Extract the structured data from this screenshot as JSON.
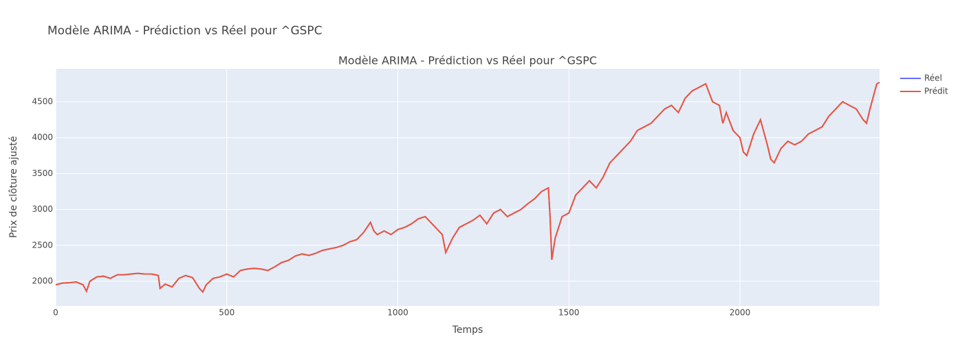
{
  "chart_data": {
    "type": "line",
    "title": "Modèle ARIMA - Prédiction vs Réel pour ^GSPC",
    "plot_title": "Modèle ARIMA - Prédiction vs Réel pour ^GSPC",
    "x_label": "Temps",
    "y_label": "Prix de clôture ajusté",
    "x": [
      0,
      20,
      40,
      60,
      80,
      90,
      100,
      120,
      140,
      160,
      180,
      200,
      220,
      240,
      260,
      280,
      300,
      305,
      320,
      340,
      360,
      380,
      400,
      420,
      430,
      440,
      460,
      480,
      500,
      520,
      540,
      560,
      580,
      600,
      620,
      640,
      660,
      680,
      700,
      720,
      740,
      760,
      780,
      800,
      820,
      840,
      860,
      880,
      900,
      920,
      930,
      940,
      960,
      980,
      1000,
      1020,
      1040,
      1060,
      1080,
      1100,
      1120,
      1130,
      1140,
      1160,
      1180,
      1200,
      1220,
      1240,
      1260,
      1280,
      1300,
      1320,
      1340,
      1360,
      1380,
      1400,
      1420,
      1440,
      1445,
      1450,
      1460,
      1480,
      1500,
      1520,
      1540,
      1560,
      1580,
      1600,
      1620,
      1640,
      1660,
      1680,
      1700,
      1720,
      1740,
      1760,
      1780,
      1800,
      1820,
      1840,
      1860,
      1880,
      1900,
      1920,
      1940,
      1950,
      1960,
      1980,
      2000,
      2010,
      2020,
      2040,
      2060,
      2080,
      2090,
      2100,
      2120,
      2140,
      2160,
      2180,
      2200,
      2220,
      2240,
      2260,
      2280,
      2300,
      2320,
      2340,
      2360,
      2370,
      2380,
      2400,
      2408
    ],
    "series": [
      {
        "name": "Réel",
        "color": "#636efa",
        "values": [
          1950,
          1975,
          1980,
          1990,
          1950,
          1860,
          2000,
          2060,
          2070,
          2040,
          2090,
          2090,
          2100,
          2110,
          2100,
          2100,
          2080,
          1900,
          1960,
          1920,
          2040,
          2080,
          2050,
          1900,
          1850,
          1950,
          2040,
          2060,
          2100,
          2060,
          2150,
          2170,
          2180,
          2170,
          2150,
          2200,
          2260,
          2290,
          2350,
          2380,
          2360,
          2390,
          2430,
          2450,
          2470,
          2500,
          2550,
          2580,
          2680,
          2820,
          2700,
          2650,
          2700,
          2650,
          2720,
          2750,
          2800,
          2870,
          2900,
          2800,
          2700,
          2650,
          2400,
          2600,
          2750,
          2800,
          2850,
          2920,
          2800,
          2950,
          3000,
          2900,
          2950,
          3000,
          3080,
          3150,
          3250,
          3300,
          2900,
          2300,
          2600,
          2900,
          2950,
          3200,
          3300,
          3400,
          3300,
          3450,
          3650,
          3750,
          3850,
          3950,
          4100,
          4150,
          4200,
          4300,
          4400,
          4450,
          4350,
          4550,
          4650,
          4700,
          4750,
          4500,
          4450,
          4200,
          4350,
          4100,
          4000,
          3800,
          3750,
          4050,
          4250,
          3900,
          3700,
          3650,
          3850,
          3950,
          3900,
          3950,
          4050,
          4100,
          4150,
          4300,
          4400,
          4500,
          4450,
          4400,
          4250,
          4200,
          4400,
          4750,
          4770
        ]
      },
      {
        "name": "Prédit",
        "color": "#ef553b",
        "values": [
          1950,
          1975,
          1980,
          1990,
          1950,
          1860,
          2000,
          2060,
          2070,
          2040,
          2090,
          2090,
          2100,
          2110,
          2100,
          2100,
          2080,
          1900,
          1960,
          1920,
          2040,
          2080,
          2050,
          1900,
          1850,
          1950,
          2040,
          2060,
          2100,
          2060,
          2150,
          2170,
          2180,
          2170,
          2150,
          2200,
          2260,
          2290,
          2350,
          2380,
          2360,
          2390,
          2430,
          2450,
          2470,
          2500,
          2550,
          2580,
          2680,
          2820,
          2700,
          2650,
          2700,
          2650,
          2720,
          2750,
          2800,
          2870,
          2900,
          2800,
          2700,
          2650,
          2400,
          2600,
          2750,
          2800,
          2850,
          2920,
          2800,
          2950,
          3000,
          2900,
          2950,
          3000,
          3080,
          3150,
          3250,
          3300,
          2900,
          2300,
          2600,
          2900,
          2950,
          3200,
          3300,
          3400,
          3300,
          3450,
          3650,
          3750,
          3850,
          3950,
          4100,
          4150,
          4200,
          4300,
          4400,
          4450,
          4350,
          4550,
          4650,
          4700,
          4750,
          4500,
          4450,
          4200,
          4350,
          4100,
          4000,
          3800,
          3750,
          4050,
          4250,
          3900,
          3700,
          3650,
          3850,
          3950,
          3900,
          3950,
          4050,
          4100,
          4150,
          4300,
          4400,
          4500,
          4450,
          4400,
          4250,
          4200,
          4400,
          4750,
          4770
        ]
      }
    ],
    "xlim": [
      0,
      2408
    ],
    "ylim": [
      1655,
      4960
    ],
    "xticks": [
      0,
      500,
      1000,
      1500,
      2000
    ],
    "yticks": [
      2000,
      2500,
      3000,
      3500,
      4000,
      4500
    ],
    "grid": true,
    "legend": "top-right"
  }
}
